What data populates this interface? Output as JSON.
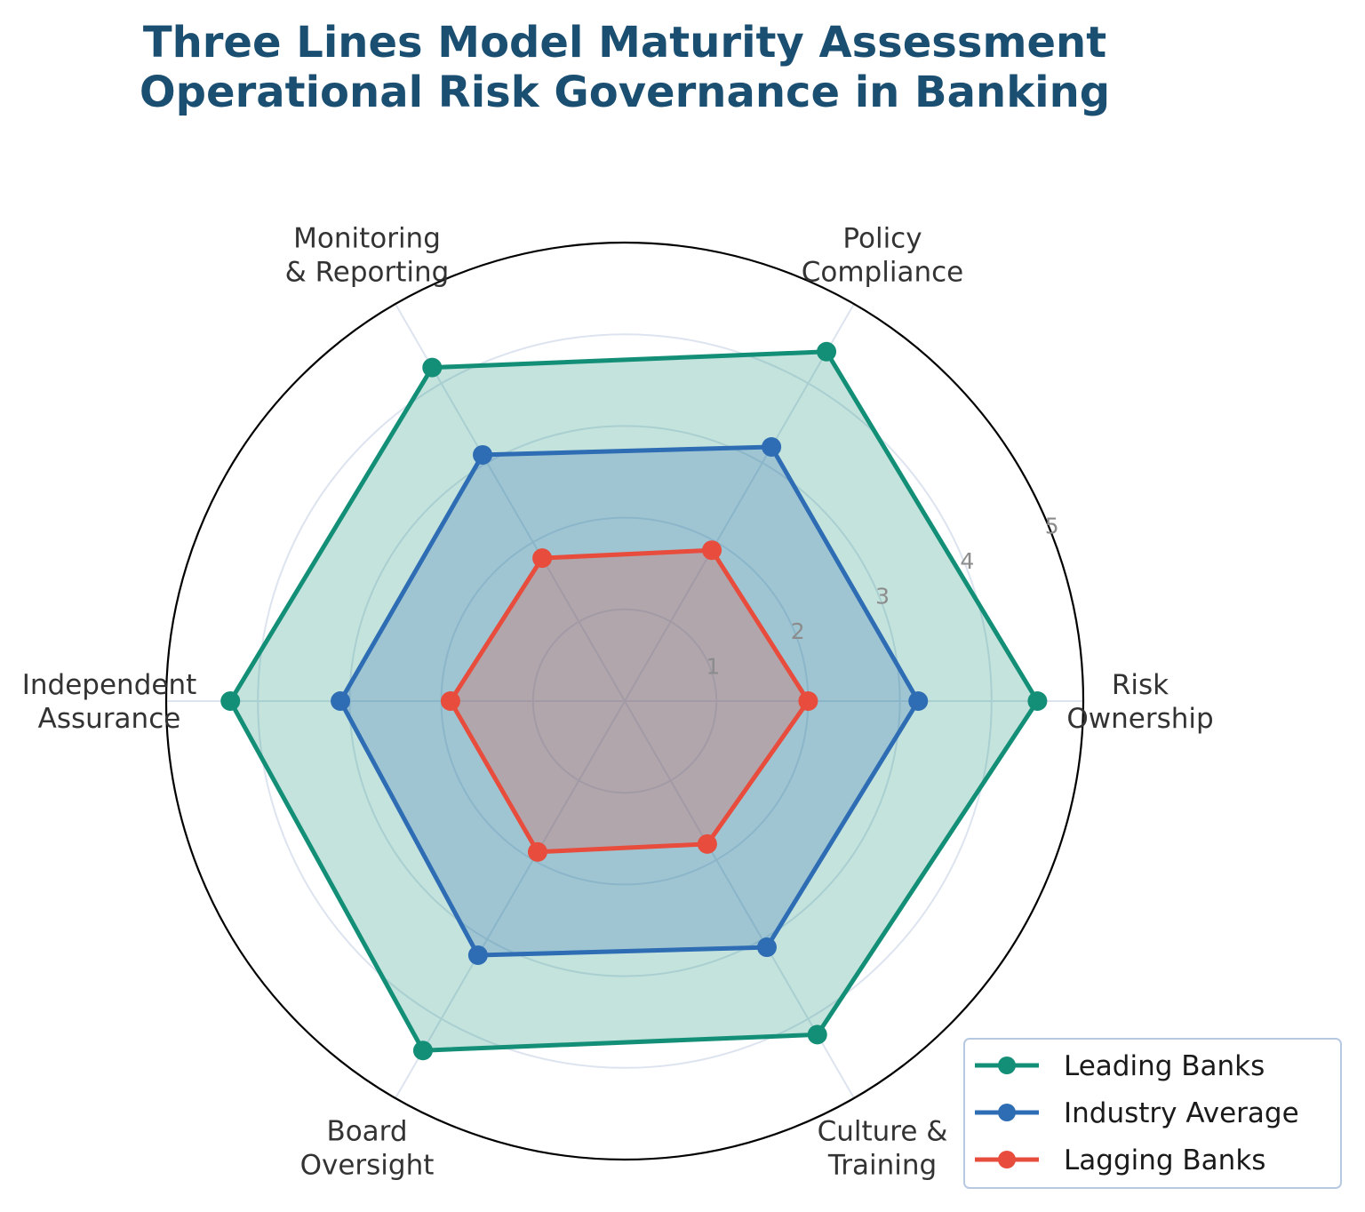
{
  "chart_data": {
    "type": "radar",
    "title_lines": [
      "Three Lines Model Maturity Assessment",
      "Operational Risk Governance in Banking"
    ],
    "axes": [
      [
        "Risk",
        "Ownership"
      ],
      [
        "Policy",
        "Compliance"
      ],
      [
        "Monitoring",
        "& Reporting"
      ],
      [
        "Independent",
        "Assurance"
      ],
      [
        "Board",
        "Oversight"
      ],
      [
        "Culture &",
        "Training"
      ]
    ],
    "rlim": [
      0,
      5
    ],
    "rticks": [
      "1",
      "2",
      "3",
      "4",
      "5"
    ],
    "grid": true,
    "legend_position": "lower-right",
    "series": [
      {
        "name": "Leading Banks",
        "color": "#148f77",
        "values": [
          4.5,
          4.4,
          4.2,
          4.3,
          4.4,
          4.2
        ]
      },
      {
        "name": "Industry Average",
        "color": "#2e6db4",
        "values": [
          3.2,
          3.2,
          3.1,
          3.1,
          3.2,
          3.1
        ]
      },
      {
        "name": "Lagging Banks",
        "color": "#e74c3c",
        "values": [
          2.0,
          1.9,
          1.8,
          1.9,
          1.9,
          1.8
        ]
      }
    ]
  }
}
